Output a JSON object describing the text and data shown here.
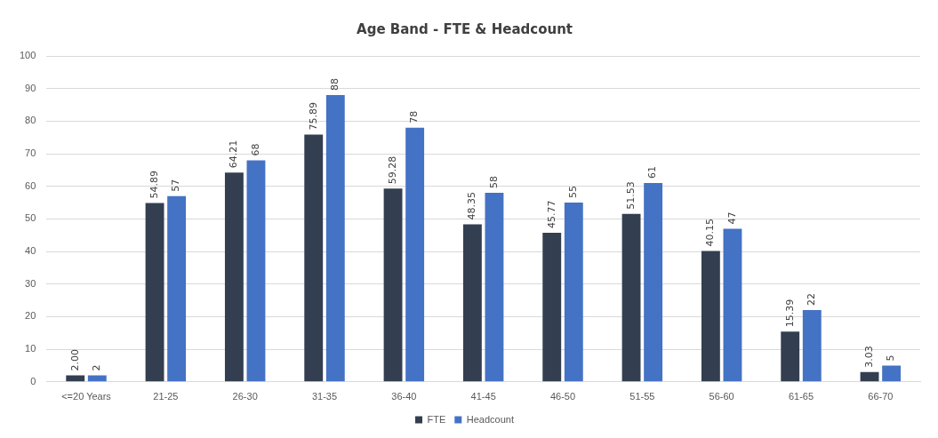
{
  "chart_data": {
    "type": "bar",
    "title": "Age Band - FTE & Headcount",
    "categories": [
      "<=20 Years",
      "21-25",
      "26-30",
      "31-35",
      "36-40",
      "41-45",
      "46-50",
      "51-55",
      "56-60",
      "61-65",
      "66-70"
    ],
    "series": [
      {
        "name": "FTE",
        "color": "#333f50",
        "values": [
          2.0,
          54.89,
          64.21,
          75.89,
          59.28,
          48.35,
          45.77,
          51.53,
          40.15,
          15.39,
          3.03
        ],
        "value_labels": [
          "2.00",
          "54.89",
          "64.21",
          "75.89",
          "59.28",
          "48.35",
          "45.77",
          "51.53",
          "40.15",
          "15.39",
          "3.03"
        ]
      },
      {
        "name": "Headcount",
        "color": "#4472c4",
        "values": [
          2,
          57,
          68,
          88,
          78,
          58,
          55,
          61,
          47,
          22,
          5
        ],
        "value_labels": [
          "2",
          "57",
          "68",
          "88",
          "78",
          "58",
          "55",
          "61",
          "47",
          "22",
          "5"
        ]
      }
    ],
    "ylim": [
      0,
      100
    ],
    "yticks": [
      0,
      10,
      20,
      30,
      40,
      50,
      60,
      70,
      80,
      90,
      100
    ],
    "grid": "y",
    "legend": "bottom"
  }
}
